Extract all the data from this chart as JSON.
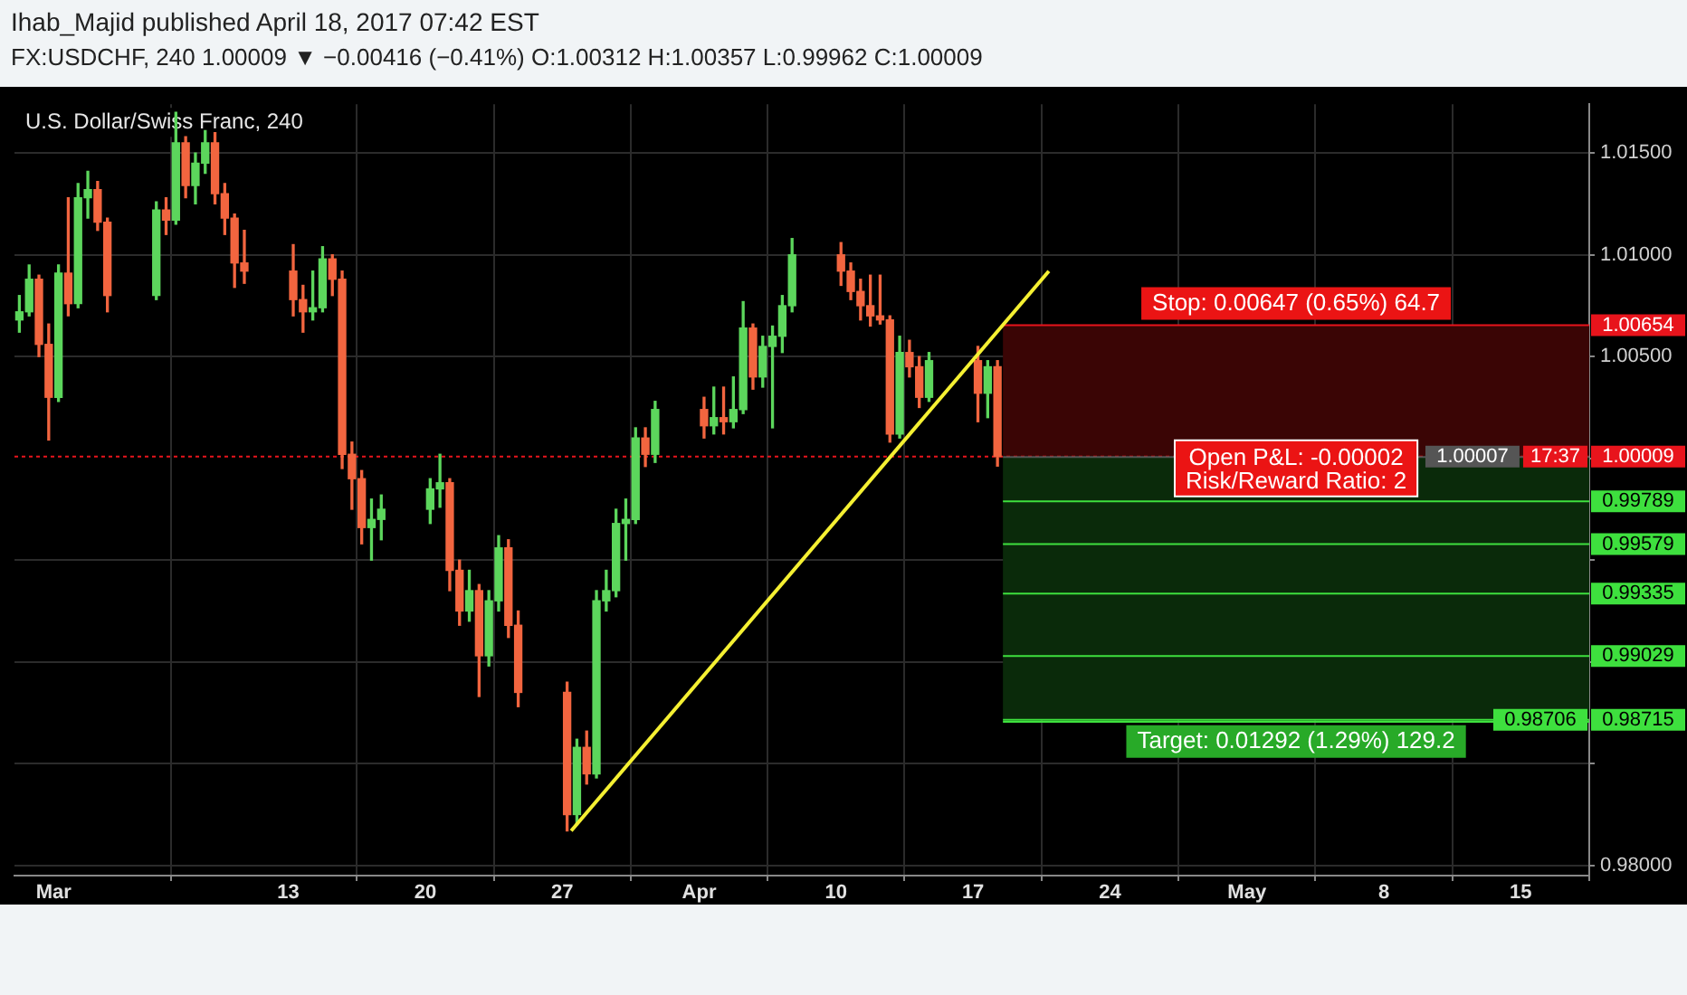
{
  "chart_data": {
    "type": "candlestick",
    "title": "U.S. Dollar/Swiss Franc, 240",
    "subtitle": "FX:USDCHF, 240 1.00009 ▼ −0.00416 (−0.41%) O:1.00312 H:1.00357 L:0.99962 C:1.00009",
    "annotations": [
      "Ihab_Majid published April 18, 2017 07:42 EST",
      {
        "text": "Open P&L: -0.00002",
        "y": 1.00009
      },
      {
        "text": "Risk/Reward Ratio: 2",
        "y": 1.00009
      },
      "17:37"
    ],
    "x": [
      "2017-02-27T06:00",
      "2017-02-27T18:00",
      "2017-02-28T06:00",
      "2017-02-28T18:00",
      "2017-03-01T06:00",
      "2017-03-01T18:00",
      "2017-03-02T06:00",
      "2017-03-02T18:00",
      "2017-03-03T06:00",
      "2017-03-03T18:00",
      "2017-03-06T06:00",
      "2017-03-06T18:00",
      "2017-03-07T06:00",
      "2017-03-07T18:00",
      "2017-03-08T06:00",
      "2017-03-08T18:00",
      "2017-03-09T06:00",
      "2017-03-09T18:00",
      "2017-03-10T06:00",
      "2017-03-10T18:00",
      "2017-03-13T06:00",
      "2017-03-13T18:00",
      "2017-03-14T06:00",
      "2017-03-14T18:00",
      "2017-03-15T06:00",
      "2017-03-15T18:00",
      "2017-03-16T06:00",
      "2017-03-16T18:00",
      "2017-03-17T06:00",
      "2017-03-17T18:00",
      "2017-03-20T06:00",
      "2017-03-20T18:00",
      "2017-03-21T06:00",
      "2017-03-21T18:00",
      "2017-03-22T06:00",
      "2017-03-22T18:00",
      "2017-03-23T06:00",
      "2017-03-23T18:00",
      "2017-03-24T06:00",
      "2017-03-24T18:00",
      "2017-03-27T06:00",
      "2017-03-27T18:00",
      "2017-03-28T06:00",
      "2017-03-28T18:00",
      "2017-03-29T06:00",
      "2017-03-29T18:00",
      "2017-03-30T06:00",
      "2017-03-30T18:00",
      "2017-03-31T06:00",
      "2017-03-31T18:00",
      "2017-04-03T06:00",
      "2017-04-03T18:00",
      "2017-04-04T06:00",
      "2017-04-04T18:00",
      "2017-04-05T06:00",
      "2017-04-05T18:00",
      "2017-04-06T06:00",
      "2017-04-06T18:00",
      "2017-04-07T06:00",
      "2017-04-07T18:00",
      "2017-04-10T06:00",
      "2017-04-10T18:00",
      "2017-04-11T06:00",
      "2017-04-11T18:00",
      "2017-04-12T06:00",
      "2017-04-12T18:00",
      "2017-04-13T06:00",
      "2017-04-13T18:00",
      "2017-04-14T06:00",
      "2017-04-14T18:00",
      "2017-04-17T06:00",
      "2017-04-17T18:00",
      "2017-04-18T06:00"
    ],
    "ohlc": [
      [
        1.0068,
        1.008,
        1.0062,
        1.0072
      ],
      [
        1.0072,
        1.0095,
        1.007,
        1.0088
      ],
      [
        1.0088,
        1.009,
        1.005,
        1.0056
      ],
      [
        1.0056,
        1.0066,
        1.0009,
        1.003
      ],
      [
        1.003,
        1.0095,
        1.0028,
        1.0091
      ],
      [
        1.0091,
        1.0128,
        1.007,
        1.0076
      ],
      [
        1.0076,
        1.0135,
        1.0074,
        1.0128
      ],
      [
        1.0128,
        1.0141,
        1.0118,
        1.0132
      ],
      [
        1.0132,
        1.0136,
        1.0112,
        1.0116
      ],
      [
        1.0116,
        1.0118,
        1.0072,
        1.008
      ],
      [
        1.008,
        1.0126,
        1.0078,
        1.0122
      ],
      [
        1.0122,
        1.0128,
        1.011,
        1.0117
      ],
      [
        1.0117,
        1.017,
        1.0115,
        1.0155
      ],
      [
        1.0155,
        1.0158,
        1.0128,
        1.0134
      ],
      [
        1.0134,
        1.015,
        1.0125,
        1.0145
      ],
      [
        1.0145,
        1.0161,
        1.014,
        1.0155
      ],
      [
        1.0155,
        1.016,
        1.0125,
        1.013
      ],
      [
        1.013,
        1.0135,
        1.011,
        1.0118
      ],
      [
        1.0118,
        1.012,
        1.0084,
        1.0096
      ],
      [
        1.0096,
        1.0112,
        1.0086,
        1.0092
      ],
      [
        1.0092,
        1.0105,
        1.007,
        1.0078
      ],
      [
        1.0078,
        1.0085,
        1.0062,
        1.0072
      ],
      [
        1.0072,
        1.0092,
        1.0068,
        1.0074
      ],
      [
        1.0074,
        1.0104,
        1.0072,
        1.0098
      ],
      [
        1.0098,
        1.01,
        1.008,
        1.0088
      ],
      [
        1.0088,
        1.0092,
        0.9995,
        1.0002
      ],
      [
        1.0002,
        1.0008,
        0.9975,
        0.999
      ],
      [
        0.999,
        0.9994,
        0.9958,
        0.9966
      ],
      [
        0.9966,
        0.998,
        0.995,
        0.997
      ],
      [
        0.997,
        0.9982,
        0.996,
        0.9975
      ],
      [
        0.9975,
        0.999,
        0.9968,
        0.9985
      ],
      [
        0.9985,
        1.0002,
        0.9976,
        0.9988
      ],
      [
        0.9988,
        0.999,
        0.9935,
        0.9945
      ],
      [
        0.9945,
        0.995,
        0.9918,
        0.9925
      ],
      [
        0.9925,
        0.9945,
        0.992,
        0.9935
      ],
      [
        0.9935,
        0.9938,
        0.9883,
        0.9903
      ],
      [
        0.9903,
        0.9935,
        0.9898,
        0.993
      ],
      [
        0.993,
        0.9962,
        0.9925,
        0.9956
      ],
      [
        0.9956,
        0.996,
        0.9912,
        0.9918
      ],
      [
        0.9918,
        0.9925,
        0.9878,
        0.9885
      ],
      [
        0.9885,
        0.989,
        0.9817,
        0.9825
      ],
      [
        0.9825,
        0.9862,
        0.982,
        0.9858
      ],
      [
        0.9858,
        0.9866,
        0.984,
        0.9845
      ],
      [
        0.9845,
        0.9935,
        0.9843,
        0.993
      ],
      [
        0.993,
        0.9945,
        0.9925,
        0.9935
      ],
      [
        0.9935,
        0.9975,
        0.9932,
        0.9968
      ],
      [
        0.9968,
        0.998,
        0.995,
        0.997
      ],
      [
        0.997,
        1.0015,
        0.9968,
        1.001
      ],
      [
        1.001,
        1.0015,
        0.9996,
        1.0002
      ],
      [
        1.0002,
        1.0028,
        0.9998,
        1.0024
      ],
      [
        1.0024,
        1.003,
        1.001,
        1.0016
      ],
      [
        1.0016,
        1.0035,
        1.0012,
        1.002
      ],
      [
        1.002,
        1.0035,
        1.0012,
        1.0018
      ],
      [
        1.0018,
        1.004,
        1.0015,
        1.0024
      ],
      [
        1.0024,
        1.0077,
        1.0022,
        1.0064
      ],
      [
        1.0064,
        1.0066,
        1.0034,
        1.004
      ],
      [
        1.004,
        1.006,
        1.0035,
        1.0055
      ],
      [
        1.0055,
        1.0065,
        1.0015,
        1.006
      ],
      [
        1.006,
        1.008,
        1.0052,
        1.0075
      ],
      [
        1.0075,
        1.0108,
        1.0072,
        1.01
      ],
      [
        1.01,
        1.0106,
        1.0085,
        1.0092
      ],
      [
        1.0092,
        1.0096,
        1.0078,
        1.0082
      ],
      [
        1.0082,
        1.0088,
        1.0068,
        1.0075
      ],
      [
        1.0075,
        1.009,
        1.0065,
        1.007
      ],
      [
        1.007,
        1.009,
        1.0066,
        1.0068
      ],
      [
        1.0068,
        1.007,
        1.0008,
        1.0012
      ],
      [
        1.0012,
        1.006,
        1.001,
        1.0052
      ],
      [
        1.0052,
        1.0058,
        1.004,
        1.0045
      ],
      [
        1.0045,
        1.005,
        1.0025,
        1.003
      ],
      [
        1.003,
        1.0052,
        1.0028,
        1.0048
      ],
      [
        1.0048,
        1.0055,
        1.0018,
        1.0032
      ],
      [
        1.0032,
        1.0048,
        1.002,
        1.0045
      ],
      [
        1.0045,
        1.0048,
        0.99962,
        1.00009
      ]
    ],
    "colors": [
      "#5cd65c",
      "#5cd65c",
      "#f2653f",
      "#f2653f",
      "#5cd65c",
      "#f2653f",
      "#5cd65c",
      "#5cd65c",
      "#f2653f",
      "#f2653f",
      "#5cd65c",
      "#f2653f",
      "#5cd65c",
      "#f2653f",
      "#5cd65c",
      "#5cd65c",
      "#f2653f",
      "#f2653f",
      "#f2653f",
      "#f2653f",
      "#f2653f",
      "#f2653f",
      "#5cd65c",
      "#5cd65c",
      "#f2653f",
      "#f2653f",
      "#f2653f",
      "#f2653f",
      "#5cd65c",
      "#5cd65c",
      "#5cd65c",
      "#5cd65c",
      "#f2653f",
      "#f2653f",
      "#5cd65c",
      "#f2653f",
      "#5cd65c",
      "#5cd65c",
      "#f2653f",
      "#f2653f",
      "#f2653f",
      "#5cd65c",
      "#f2653f",
      "#5cd65c",
      "#5cd65c",
      "#5cd65c",
      "#5cd65c",
      "#5cd65c",
      "#f2653f",
      "#5cd65c",
      "#f2653f",
      "#5cd65c",
      "#f2653f",
      "#5cd65c",
      "#5cd65c",
      "#f2653f",
      "#5cd65c",
      "#5cd65c",
      "#5cd65c",
      "#5cd65c",
      "#f2653f",
      "#f2653f",
      "#f2653f",
      "#f2653f",
      "#f2653f",
      "#f2653f",
      "#5cd65c",
      "#f2653f",
      "#f2653f",
      "#5cd65c",
      "#f2653f",
      "#5cd65c",
      "#f2653f"
    ],
    "series": [
      {
        "type": "line",
        "color": "#f5f032",
        "marker": "none",
        "x": [
          "2017-03-27T11:00",
          "2017-04-20T21:00"
        ],
        "values": [
          0.9817,
          1.0092
        ]
      }
    ],
    "xlim": [
      "2017-02-27T00:00",
      "2017-05-18T12:00"
    ],
    "xticks": [
      {
        "value": "2017-03-01",
        "label": "Mar"
      },
      {
        "value": "2017-03-13",
        "label": "13"
      },
      {
        "value": "2017-03-20",
        "label": "20"
      },
      {
        "value": "2017-03-27",
        "label": "27"
      },
      {
        "value": "2017-04-03",
        "label": "Apr"
      },
      {
        "value": "2017-04-10",
        "label": "10"
      },
      {
        "value": "2017-04-17",
        "label": "17"
      },
      {
        "value": "2017-04-24",
        "label": "24"
      },
      {
        "value": "2017-05-01",
        "label": "May"
      },
      {
        "value": "2017-05-08",
        "label": "8"
      },
      {
        "value": "2017-05-15",
        "label": "15"
      }
    ],
    "ylim": [
      0.9795,
      1.0174
    ],
    "yticks": [
      {
        "value": 0.98,
        "label": "0.98000"
      },
      {
        "value": 0.985,
        "label": null
      },
      {
        "value": 0.99,
        "label": null
      },
      {
        "value": 0.995,
        "label": null
      },
      {
        "value": 1.0,
        "label": null
      },
      {
        "value": 1.005,
        "label": "1.00500"
      },
      {
        "value": 1.01,
        "label": "1.01000"
      },
      {
        "value": 1.015,
        "label": "1.01500"
      }
    ],
    "grid": true,
    "legend": false,
    "bands": [
      {
        "axis": "y",
        "from": 1.00009,
        "to": 1.00654,
        "label": "Stop: 0.00647 (0.65%) 64.7",
        "color": "#3a0505"
      },
      {
        "axis": "y",
        "from": 0.98715,
        "to": 1.00009,
        "label": "Target: 0.01292 (1.29%) 129.2",
        "color": "#0a2a0a"
      }
    ],
    "ref_lines": [
      {
        "axis": "y",
        "value": 1.00654,
        "label": "1.00654",
        "color": "#e8141c",
        "line_style": "solid"
      },
      {
        "axis": "y",
        "value": 1.00009,
        "label": "1.00009",
        "color": "#e8141c",
        "line_style": "dotted"
      },
      {
        "axis": "y",
        "value": 1.00007,
        "label": "1.00007",
        "color": "#555555",
        "line_style": "solid"
      },
      {
        "axis": "y",
        "value": 0.99789,
        "label": "0.99789",
        "color": "#3ee03e",
        "line_style": "solid"
      },
      {
        "axis": "y",
        "value": 0.99579,
        "label": "0.99579",
        "color": "#3ee03e",
        "line_style": "solid"
      },
      {
        "axis": "y",
        "value": 0.99335,
        "label": "0.99335",
        "color": "#3ee03e",
        "line_style": "solid"
      },
      {
        "axis": "y",
        "value": 0.99029,
        "label": "0.99029",
        "color": "#3ee03e",
        "line_style": "solid"
      },
      {
        "axis": "y",
        "value": 0.98715,
        "label": "0.98715",
        "color": "#3ee03e",
        "line_style": "solid"
      },
      {
        "axis": "y",
        "value": 0.98706,
        "label": "0.98706",
        "color": "#3ee03e",
        "line_style": "solid"
      }
    ]
  }
}
